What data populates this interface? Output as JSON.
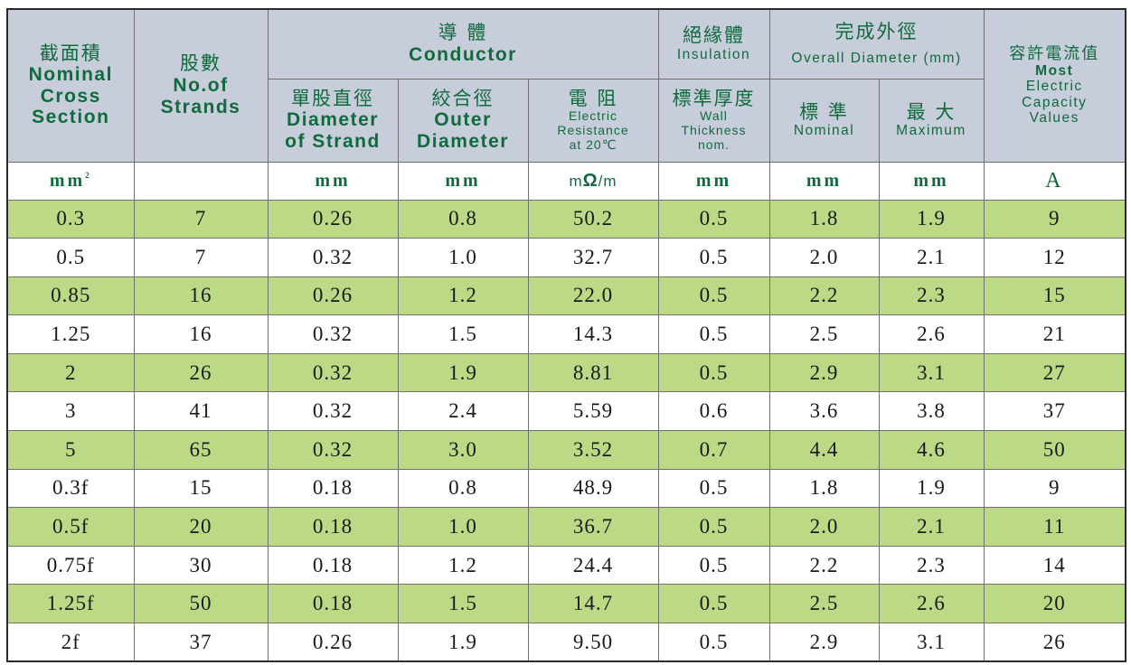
{
  "header": {
    "cross": {
      "zh": "截面積",
      "en": [
        "Nominal",
        "Cross",
        "Section"
      ]
    },
    "strands": {
      "zh": "股數",
      "en": [
        "No.of",
        "Strands"
      ]
    },
    "conductor": {
      "zh": "導 體",
      "en": "Conductor"
    },
    "insulation": {
      "zh": "絕緣體",
      "en": "Insulation"
    },
    "overall": {
      "zh": "完成外徑",
      "en": "Overall Diameter (mm)"
    },
    "capacity": {
      "zh": "容許電流值",
      "en": [
        "Most",
        "Electric",
        "Capacity",
        "Values"
      ]
    },
    "strand_dia": {
      "zh": "單股直徑",
      "en": [
        "Diameter",
        "of Strand"
      ]
    },
    "outer_dia": {
      "zh": "絞合徑",
      "en": [
        "Outer",
        "Diameter"
      ]
    },
    "resistance": {
      "zh": "電 阻",
      "en": [
        "Electric",
        "Resistance",
        "at 20℃"
      ]
    },
    "wall": {
      "zh": "標準厚度",
      "en": [
        "Wall",
        "Thickness",
        "nom."
      ]
    },
    "nominal": {
      "zh": "標 準",
      "en": "Nominal"
    },
    "maximum": {
      "zh": "最 大",
      "en": "Maximum"
    }
  },
  "units": {
    "cross": "mm",
    "cross_sup": "2",
    "strands": "",
    "strand_dia": "mm",
    "outer_dia": "mm",
    "resistance_pre": "m",
    "resistance_omega": "Ω",
    "resistance_post": "/m",
    "wall": "mm",
    "nominal": "mm",
    "maximum": "mm",
    "capacity": "A"
  },
  "rows": [
    [
      "0.3",
      "7",
      "0.26",
      "0.8",
      "50.2",
      "0.5",
      "1.8",
      "1.9",
      "9"
    ],
    [
      "0.5",
      "7",
      "0.32",
      "1.0",
      "32.7",
      "0.5",
      "2.0",
      "2.1",
      "12"
    ],
    [
      "0.85",
      "16",
      "0.26",
      "1.2",
      "22.0",
      "0.5",
      "2.2",
      "2.3",
      "15"
    ],
    [
      "1.25",
      "16",
      "0.32",
      "1.5",
      "14.3",
      "0.5",
      "2.5",
      "2.6",
      "21"
    ],
    [
      "2",
      "26",
      "0.32",
      "1.9",
      "8.81",
      "0.5",
      "2.9",
      "3.1",
      "27"
    ],
    [
      "3",
      "41",
      "0.32",
      "2.4",
      "5.59",
      "0.6",
      "3.6",
      "3.8",
      "37"
    ],
    [
      "5",
      "65",
      "0.32",
      "3.0",
      "3.52",
      "0.7",
      "4.4",
      "4.6",
      "50"
    ],
    [
      "0.3f",
      "15",
      "0.18",
      "0.8",
      "48.9",
      "0.5",
      "1.8",
      "1.9",
      "9"
    ],
    [
      "0.5f",
      "20",
      "0.18",
      "1.0",
      "36.7",
      "0.5",
      "2.0",
      "2.1",
      "11"
    ],
    [
      "0.75f",
      "30",
      "0.18",
      "1.2",
      "24.4",
      "0.5",
      "2.2",
      "2.3",
      "14"
    ],
    [
      "1.25f",
      "50",
      "0.18",
      "1.5",
      "14.7",
      "0.5",
      "2.5",
      "2.6",
      "20"
    ],
    [
      "2f",
      "37",
      "0.26",
      "1.9",
      "9.50",
      "0.5",
      "2.9",
      "3.1",
      "26"
    ]
  ],
  "colors": {
    "header_bg": "#c8cddc",
    "header_text": "#0f6b3b",
    "stripe": "#bcd985"
  }
}
